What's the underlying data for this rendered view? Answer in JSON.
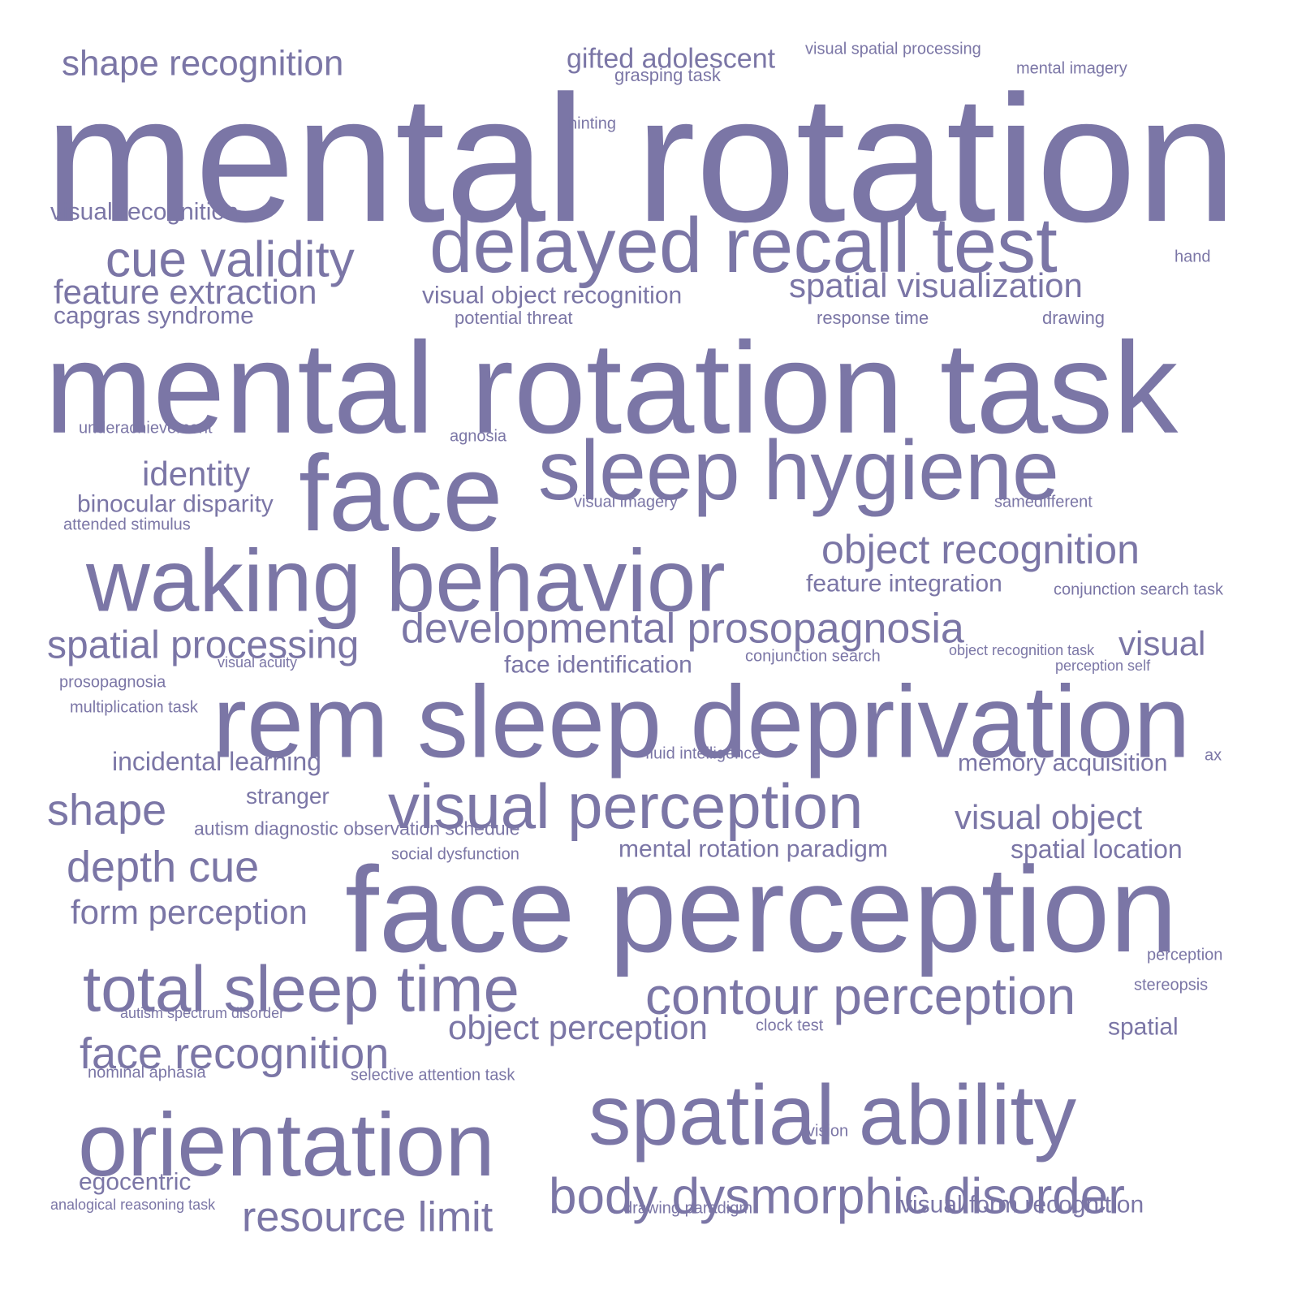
{
  "color": "#7b76a6",
  "words": [
    {
      "text": "mental rotation"
    },
    {
      "text": "mental rotation task"
    },
    {
      "text": "face perception"
    },
    {
      "text": "rem sleep deprivation"
    },
    {
      "text": "face"
    },
    {
      "text": "sleep hygiene"
    },
    {
      "text": "waking behavior"
    },
    {
      "text": "delayed recall test"
    },
    {
      "text": "spatial ability"
    },
    {
      "text": "orientation"
    },
    {
      "text": "visual perception"
    },
    {
      "text": "total sleep time"
    },
    {
      "text": "contour perception"
    },
    {
      "text": "body dysmorphic disorder"
    },
    {
      "text": "developmental prosopagnosia"
    },
    {
      "text": "cue validity"
    },
    {
      "text": "object recognition"
    },
    {
      "text": "depth cue"
    },
    {
      "text": "face recognition"
    },
    {
      "text": "spatial processing"
    },
    {
      "text": "resource limit"
    },
    {
      "text": "shape"
    },
    {
      "text": "shape recognition"
    },
    {
      "text": "spatial visualization"
    },
    {
      "text": "feature extraction"
    },
    {
      "text": "visual object"
    },
    {
      "text": "identity"
    },
    {
      "text": "object perception"
    },
    {
      "text": "form perception"
    },
    {
      "text": "visual"
    },
    {
      "text": "gifted adolescent"
    },
    {
      "text": "spatial location"
    },
    {
      "text": "memory acquisition"
    },
    {
      "text": "mental rotation paradigm"
    },
    {
      "text": "incidental learning"
    },
    {
      "text": "feature integration"
    },
    {
      "text": "face identification"
    },
    {
      "text": "capgras syndrome"
    },
    {
      "text": "binocular disparity"
    },
    {
      "text": "visual recognition"
    },
    {
      "text": "visual object recognition"
    },
    {
      "text": "visual form recognition"
    },
    {
      "text": "spatial"
    },
    {
      "text": "egocentric"
    },
    {
      "text": "stranger"
    },
    {
      "text": "autism diagnostic observation schedule"
    },
    {
      "text": "response time"
    },
    {
      "text": "drawing"
    },
    {
      "text": "potential threat"
    },
    {
      "text": "grasping task"
    },
    {
      "text": "visual spatial processing"
    },
    {
      "text": "mental imagery"
    },
    {
      "text": "hinting"
    },
    {
      "text": "hand"
    },
    {
      "text": "underachievement"
    },
    {
      "text": "agnosia"
    },
    {
      "text": "visual imagery"
    },
    {
      "text": "samedifferent"
    },
    {
      "text": "attended stimulus"
    },
    {
      "text": "conjunction search task"
    },
    {
      "text": "conjunction search"
    },
    {
      "text": "object recognition task"
    },
    {
      "text": "perception self"
    },
    {
      "text": "visual acuity"
    },
    {
      "text": "prosopagnosia"
    },
    {
      "text": "multiplication task"
    },
    {
      "text": "fluid intelligence"
    },
    {
      "text": "ax"
    },
    {
      "text": "social dysfunction"
    },
    {
      "text": "perception"
    },
    {
      "text": "stereopsis"
    },
    {
      "text": "autism spectrum disorder"
    },
    {
      "text": "clock test"
    },
    {
      "text": "nominal aphasia"
    },
    {
      "text": "selective attention task"
    },
    {
      "text": "vision"
    },
    {
      "text": "analogical reasoning task"
    },
    {
      "text": "drawing paradigm"
    }
  ]
}
